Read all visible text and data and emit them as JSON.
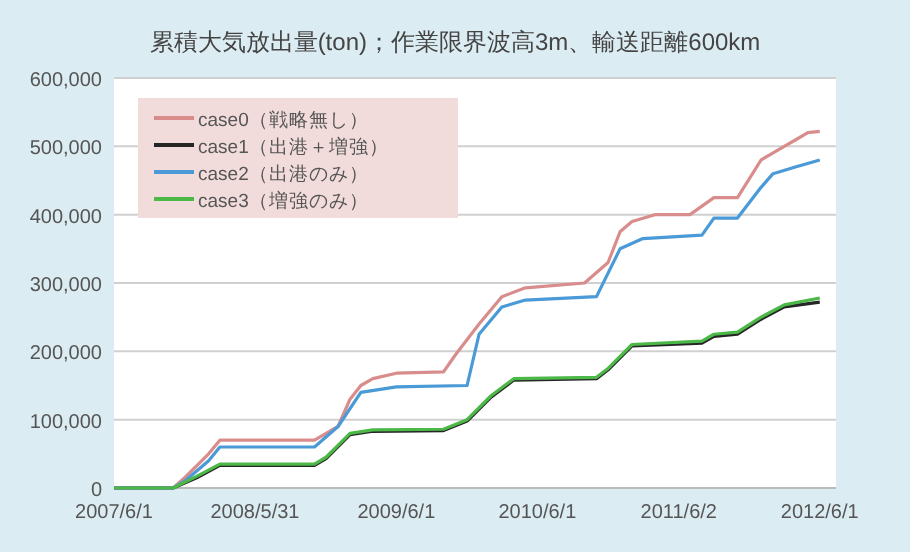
{
  "chart_data": {
    "type": "line",
    "title": "累積大気放出量(ton)；作業限界波高3m、輸送距離600km",
    "xlim": [
      "2007-06-01",
      "2012-07-13"
    ],
    "xticks": [
      {
        "value": "2007-06-01",
        "label": "2007/6/1"
      },
      {
        "value": "2008-05-31",
        "label": "2008/5/31"
      },
      {
        "value": "2009-06-01",
        "label": "2009/6/1"
      },
      {
        "value": "2010-06-01",
        "label": "2010/6/1"
      },
      {
        "value": "2011-06-02",
        "label": "2011/6/2"
      },
      {
        "value": "2012-06-01",
        "label": "2012/6/1"
      }
    ],
    "ylim": [
      0,
      600000
    ],
    "yticks": [
      {
        "value": 0,
        "label": "0"
      },
      {
        "value": 100000,
        "label": "100,000"
      },
      {
        "value": 200000,
        "label": "200,000"
      },
      {
        "value": 300000,
        "label": "300,000"
      },
      {
        "value": 400000,
        "label": "400,000"
      },
      {
        "value": 500000,
        "label": "500,000"
      },
      {
        "value": 600000,
        "label": "600,000"
      }
    ],
    "grid": "y",
    "legend": "top left",
    "series": [
      {
        "name": "case0（戦略無し）",
        "color": "#d98c8c",
        "x": [
          "2007-06",
          "2007-11",
          "2007-12",
          "2008-02",
          "2008-03",
          "2008-11",
          "2009-01",
          "2009-02",
          "2009-03",
          "2009-04",
          "2009-06",
          "2009-10",
          "2009-11",
          "2010-01",
          "2010-03",
          "2010-05",
          "2010-10",
          "2010-12",
          "2011-01",
          "2011-02",
          "2011-04",
          "2011-07",
          "2011-09",
          "2011-11",
          "2012-01",
          "2012-03",
          "2012-04",
          "2012-05",
          "2012-06"
        ],
        "values": [
          0,
          0,
          15000,
          50000,
          70000,
          70000,
          90000,
          130000,
          150000,
          160000,
          168000,
          170000,
          195000,
          240000,
          280000,
          293000,
          300000,
          330000,
          375000,
          390000,
          400000,
          400000,
          425000,
          425000,
          480000,
          500000,
          510000,
          520000,
          522000
        ]
      },
      {
        "name": "case1（出港＋増強）",
        "color": "#262626",
        "x": [
          "2007-06",
          "2007-11",
          "2008-01",
          "2008-03",
          "2008-11",
          "2008-12",
          "2009-02",
          "2009-04",
          "2009-10",
          "2009-12",
          "2010-02",
          "2010-04",
          "2010-11",
          "2010-12",
          "2011-02",
          "2011-08",
          "2011-09",
          "2011-11",
          "2012-01",
          "2012-03",
          "2012-06"
        ],
        "values": [
          0,
          0,
          15000,
          33000,
          33000,
          43000,
          78000,
          83000,
          84000,
          98000,
          133000,
          158000,
          160000,
          173000,
          208000,
          212000,
          222000,
          225000,
          247000,
          265000,
          272000
        ]
      },
      {
        "name": "case2（出港のみ）",
        "color": "#4a9ad8",
        "x": [
          "2007-06",
          "2007-11",
          "2007-12",
          "2008-02",
          "2008-03",
          "2008-11",
          "2009-01",
          "2009-03",
          "2009-06",
          "2009-12",
          "2010-01",
          "2010-03",
          "2010-05",
          "2010-11",
          "2011-01",
          "2011-03",
          "2011-08",
          "2011-09",
          "2011-11",
          "2012-01",
          "2012-02",
          "2012-04",
          "2012-06"
        ],
        "values": [
          0,
          0,
          10000,
          40000,
          60000,
          60000,
          90000,
          140000,
          148000,
          150000,
          225000,
          265000,
          275000,
          280000,
          350000,
          365000,
          370000,
          395000,
          395000,
          440000,
          460000,
          470000,
          480000
        ]
      },
      {
        "name": "case3（増強のみ）",
        "color": "#4cb848",
        "x": [
          "2007-06",
          "2007-11",
          "2008-01",
          "2008-03",
          "2008-11",
          "2008-12",
          "2009-02",
          "2009-04",
          "2009-10",
          "2009-12",
          "2010-02",
          "2010-04",
          "2010-11",
          "2010-12",
          "2011-02",
          "2011-08",
          "2011-09",
          "2011-11",
          "2012-01",
          "2012-03",
          "2012-06"
        ],
        "values": [
          0,
          0,
          17000,
          35000,
          35000,
          45000,
          80000,
          85000,
          86000,
          100000,
          135000,
          160000,
          162000,
          175000,
          210000,
          215000,
          225000,
          228000,
          250000,
          268000,
          278000
        ]
      }
    ]
  }
}
